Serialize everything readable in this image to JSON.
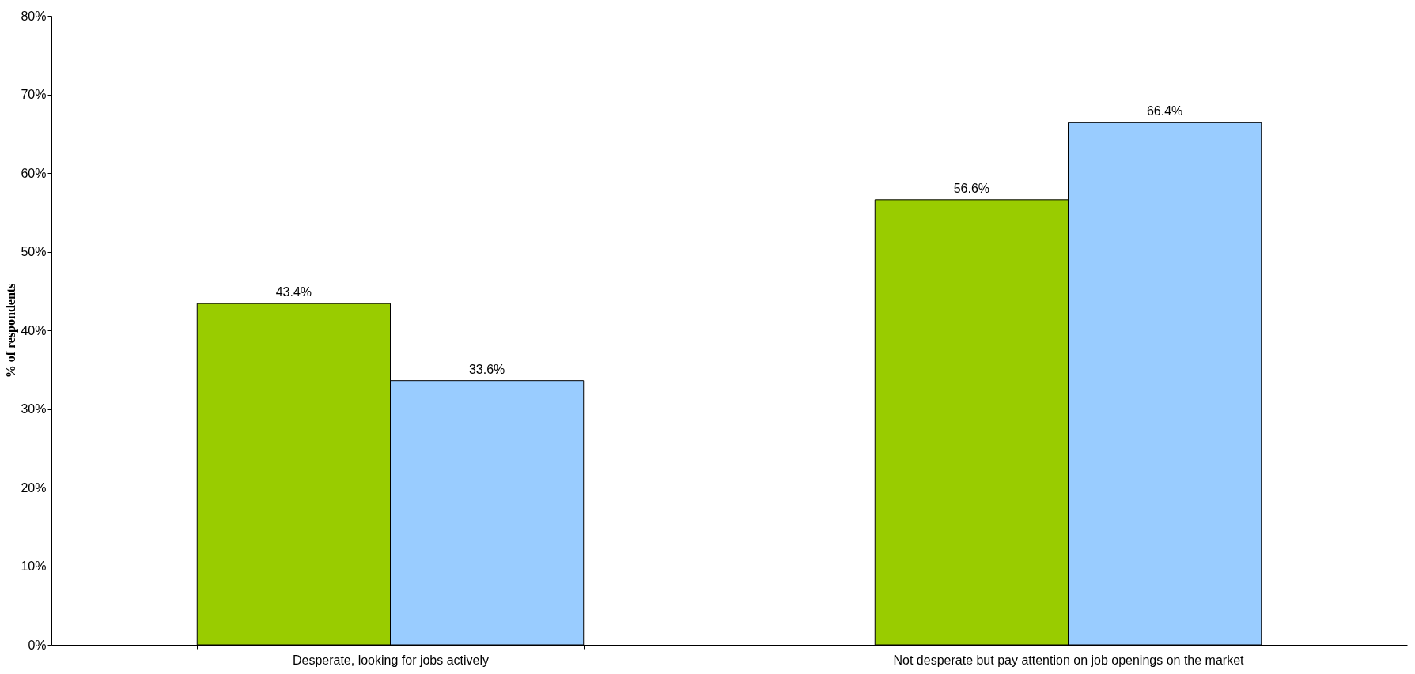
{
  "chart_data": {
    "type": "bar",
    "ylabel": "% of respondents",
    "categories": [
      "Desperate, looking for jobs actively",
      "Not desperate but pay attention on job openings on the market"
    ],
    "series": [
      {
        "color": "#99cc00",
        "values": [
          43.4,
          56.6
        ],
        "value_labels": [
          "43.4%",
          "56.6%"
        ]
      },
      {
        "color": "#99ccff",
        "values": [
          33.6,
          66.4
        ],
        "value_labels": [
          "33.6%",
          "66.4%"
        ]
      }
    ],
    "ylim": [
      0,
      80
    ],
    "yticks": [
      {
        "value": 0,
        "label": "0%"
      },
      {
        "value": 10,
        "label": "10%"
      },
      {
        "value": 20,
        "label": "20%"
      },
      {
        "value": 30,
        "label": "30%"
      },
      {
        "value": 40,
        "label": "40%"
      },
      {
        "value": 50,
        "label": "50%"
      },
      {
        "value": 60,
        "label": "60%"
      },
      {
        "value": 70,
        "label": "70%"
      },
      {
        "value": 80,
        "label": "80%"
      }
    ],
    "grid": false
  }
}
